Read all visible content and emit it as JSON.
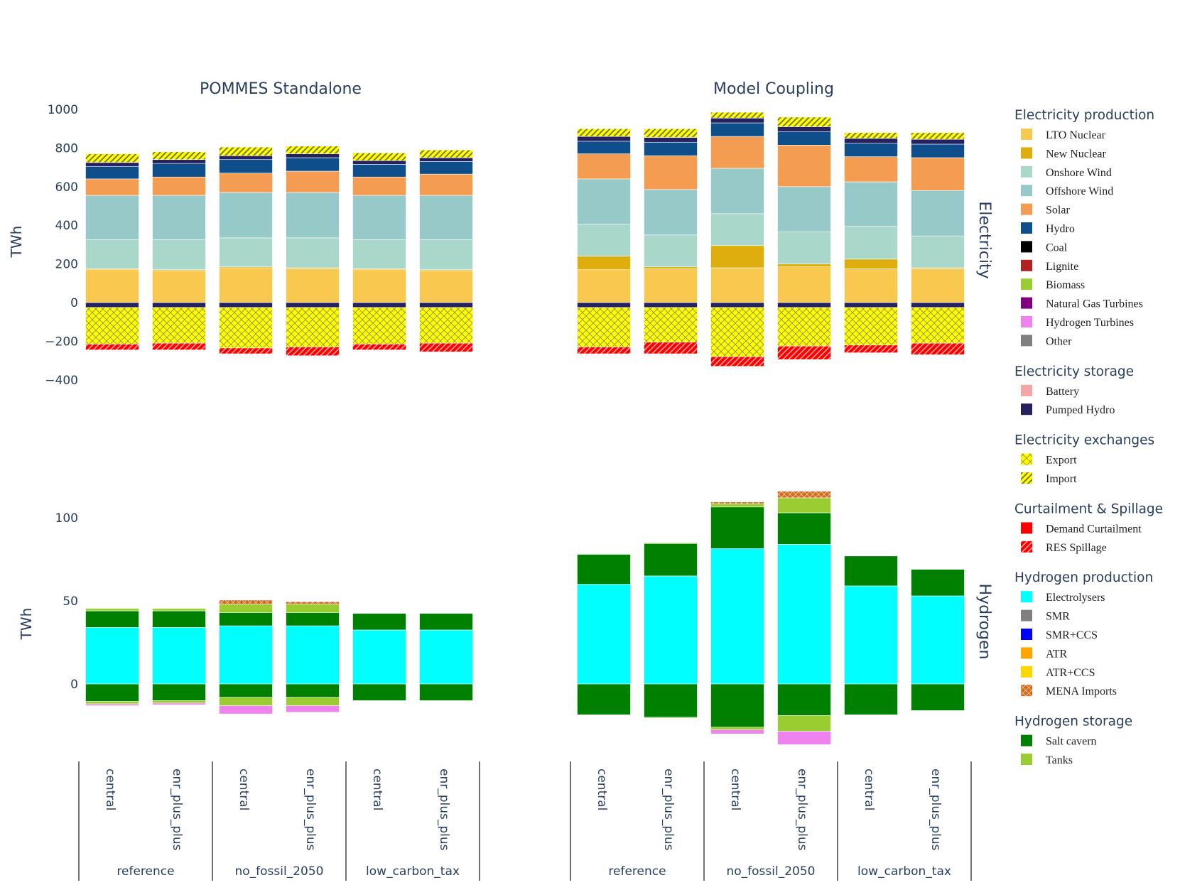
{
  "chart_data": {
    "type": "bar",
    "stacked": true,
    "y_axis_label": "TWh",
    "panel_titles": [
      "POMMES Standalone",
      "Model Coupling"
    ],
    "row_labels": [
      "Electricity",
      "Hydrogen"
    ],
    "categories": [
      "central",
      "enr_plus_plus",
      "central",
      "enr_plus_plus",
      "central",
      "enr_plus_plus"
    ],
    "groups": [
      {
        "label": "reference",
        "span": 2
      },
      {
        "label": "no_fossil_2050",
        "span": 2
      },
      {
        "label": "low_carbon_tax",
        "span": 2
      }
    ],
    "electricity_axis": {
      "ylim": [
        -400,
        1000
      ],
      "ticks": [
        -400,
        -200,
        0,
        200,
        400,
        600,
        800,
        1000
      ],
      "tick_labels": [
        "−400",
        "−200",
        "0",
        "200",
        "400",
        "600",
        "800",
        "1000"
      ]
    },
    "hydrogen_axis": {
      "ylim": [
        -38,
        115
      ],
      "ticks": [
        0,
        50,
        100
      ],
      "tick_labels": [
        "0",
        "50",
        "100"
      ]
    },
    "colors": {
      "LTO Nuclear": "#f8c84f",
      "New Nuclear": "#deae0e",
      "Onshore Wind": "#a9d8ca",
      "Offshore Wind": "#98c9c9",
      "Solar": "#f49c52",
      "Hydro": "#0e4f8b",
      "Coal": "#000000",
      "Lignite": "#b02222",
      "Biomass": "#9acd32",
      "Natural Gas Turbines": "#800080",
      "Hydrogen Turbines": "#ee82ee",
      "Other": "#808080",
      "Battery": "#f4a6a6",
      "Pumped Hydro": "#262261",
      "Export": "#ffff00",
      "Import": "#ffff00",
      "Demand Curtailment": "#ff0000",
      "RES Spillage": "#ff0000",
      "Electrolysers": "#00ffff",
      "SMR": "#808080",
      "SMR+CCS": "#0000ff",
      "ATR": "#ffa500",
      "ATR+CCS": "#ffd700",
      "MENA Imports": "#d2691e",
      "Salt cavern": "#008000",
      "Tanks": "#9acd32"
    },
    "legend": [
      {
        "title": "Electricity production",
        "items": [
          "LTO Nuclear",
          "New Nuclear",
          "Onshore Wind",
          "Offshore Wind",
          "Solar",
          "Hydro",
          "Coal",
          "Lignite",
          "Biomass",
          "Natural Gas Turbines",
          "Hydrogen Turbines",
          "Other"
        ]
      },
      {
        "title": "Electricity storage",
        "items": [
          "Battery",
          "Pumped Hydro"
        ]
      },
      {
        "title": "Electricity exchanges",
        "items": [
          "Export",
          "Import"
        ]
      },
      {
        "title": "Curtailment & Spillage",
        "items": [
          "Demand Curtailment",
          "RES Spillage"
        ]
      },
      {
        "title": "Hydrogen production",
        "items": [
          "Electrolysers",
          "SMR",
          "SMR+CCS",
          "ATR",
          "ATR+CCS",
          "MENA Imports"
        ]
      },
      {
        "title": "Hydrogen storage",
        "items": [
          "Salt cavern",
          "Tanks"
        ]
      }
    ],
    "electricity": {
      "POMMES Standalone": [
        {
          "pos": [
            [
              "LTO Nuclear",
              170
            ],
            [
              "New Nuclear",
              5
            ],
            [
              "Onshore Wind",
              150
            ],
            [
              "Offshore Wind",
              230
            ],
            [
              "Solar",
              85
            ],
            [
              "Hydro",
              65
            ],
            [
              "Pumped Hydro",
              20
            ],
            [
              "Import",
              45
            ]
          ],
          "neg": [
            [
              "Pumped Hydro",
              25
            ],
            [
              "Export",
              190
            ],
            [
              "RES Spillage",
              30
            ]
          ]
        },
        {
          "pos": [
            [
              "LTO Nuclear",
              165
            ],
            [
              "New Nuclear",
              5
            ],
            [
              "Onshore Wind",
              155
            ],
            [
              "Offshore Wind",
              230
            ],
            [
              "Solar",
              95
            ],
            [
              "Hydro",
              70
            ],
            [
              "Pumped Hydro",
              20
            ],
            [
              "Import",
              40
            ]
          ],
          "neg": [
            [
              "Pumped Hydro",
              25
            ],
            [
              "Export",
              185
            ],
            [
              "RES Spillage",
              35
            ]
          ]
        },
        {
          "pos": [
            [
              "LTO Nuclear",
              180
            ],
            [
              "New Nuclear",
              5
            ],
            [
              "Onshore Wind",
              150
            ],
            [
              "Offshore Wind",
              235
            ],
            [
              "Solar",
              100
            ],
            [
              "Hydro",
              70
            ],
            [
              "Pumped Hydro",
              20
            ],
            [
              "Import",
              45
            ]
          ],
          "neg": [
            [
              "Pumped Hydro",
              25
            ],
            [
              "Export",
              210
            ],
            [
              "RES Spillage",
              30
            ]
          ]
        },
        {
          "pos": [
            [
              "LTO Nuclear",
              175
            ],
            [
              "New Nuclear",
              5
            ],
            [
              "Onshore Wind",
              155
            ],
            [
              "Offshore Wind",
              235
            ],
            [
              "Solar",
              110
            ],
            [
              "Hydro",
              70
            ],
            [
              "Pumped Hydro",
              20
            ],
            [
              "Import",
              40
            ]
          ],
          "neg": [
            [
              "Pumped Hydro",
              25
            ],
            [
              "Export",
              205
            ],
            [
              "RES Spillage",
              45
            ]
          ]
        },
        {
          "pos": [
            [
              "LTO Nuclear",
              170
            ],
            [
              "New Nuclear",
              5
            ],
            [
              "Onshore Wind",
              150
            ],
            [
              "Offshore Wind",
              230
            ],
            [
              "Solar",
              95
            ],
            [
              "Hydro",
              65
            ],
            [
              "Pumped Hydro",
              20
            ],
            [
              "Import",
              40
            ]
          ],
          "neg": [
            [
              "Pumped Hydro",
              25
            ],
            [
              "Export",
              190
            ],
            [
              "RES Spillage",
              30
            ]
          ]
        },
        {
          "pos": [
            [
              "LTO Nuclear",
              165
            ],
            [
              "New Nuclear",
              5
            ],
            [
              "Onshore Wind",
              155
            ],
            [
              "Offshore Wind",
              230
            ],
            [
              "Solar",
              110
            ],
            [
              "Hydro",
              65
            ],
            [
              "Pumped Hydro",
              20
            ],
            [
              "Import",
              40
            ]
          ],
          "neg": [
            [
              "Pumped Hydro",
              25
            ],
            [
              "Export",
              185
            ],
            [
              "RES Spillage",
              45
            ]
          ]
        }
      ],
      "Model Coupling": [
        {
          "pos": [
            [
              "LTO Nuclear",
              170
            ],
            [
              "New Nuclear",
              70
            ],
            [
              "Onshore Wind",
              165
            ],
            [
              "Offshore Wind",
              235
            ],
            [
              "Solar",
              130
            ],
            [
              "Hydro",
              65
            ],
            [
              "Pumped Hydro",
              25
            ],
            [
              "Import",
              40
            ]
          ],
          "neg": [
            [
              "Pumped Hydro",
              25
            ],
            [
              "Export",
              205
            ],
            [
              "RES Spillage",
              35
            ]
          ]
        },
        {
          "pos": [
            [
              "LTO Nuclear",
              175
            ],
            [
              "New Nuclear",
              10
            ],
            [
              "Onshore Wind",
              165
            ],
            [
              "Offshore Wind",
              235
            ],
            [
              "Solar",
              175
            ],
            [
              "Hydro",
              70
            ],
            [
              "Pumped Hydro",
              25
            ],
            [
              "Import",
              45
            ]
          ],
          "neg": [
            [
              "Pumped Hydro",
              25
            ],
            [
              "Export",
              180
            ],
            [
              "RES Spillage",
              60
            ]
          ]
        },
        {
          "pos": [
            [
              "LTO Nuclear",
              180
            ],
            [
              "New Nuclear",
              115
            ],
            [
              "Onshore Wind",
              165
            ],
            [
              "Offshore Wind",
              235
            ],
            [
              "Solar",
              165
            ],
            [
              "Hydro",
              70
            ],
            [
              "Pumped Hydro",
              25
            ],
            [
              "Import",
              30
            ]
          ],
          "neg": [
            [
              "Pumped Hydro",
              25
            ],
            [
              "Export",
              255
            ],
            [
              "RES Spillage",
              50
            ]
          ]
        },
        {
          "pos": [
            [
              "LTO Nuclear",
              185
            ],
            [
              "New Nuclear",
              15
            ],
            [
              "Onshore Wind",
              165
            ],
            [
              "Offshore Wind",
              235
            ],
            [
              "Solar",
              215
            ],
            [
              "Hydro",
              70
            ],
            [
              "Pumped Hydro",
              25
            ],
            [
              "Import",
              50
            ]
          ],
          "neg": [
            [
              "Pumped Hydro",
              25
            ],
            [
              "Export",
              200
            ],
            [
              "RES Spillage",
              70
            ]
          ]
        },
        {
          "pos": [
            [
              "LTO Nuclear",
              175
            ],
            [
              "New Nuclear",
              50
            ],
            [
              "Onshore Wind",
              170
            ],
            [
              "Offshore Wind",
              230
            ],
            [
              "Solar",
              130
            ],
            [
              "Hydro",
              70
            ],
            [
              "Pumped Hydro",
              25
            ],
            [
              "Import",
              30
            ]
          ],
          "neg": [
            [
              "Pumped Hydro",
              25
            ],
            [
              "Export",
              195
            ],
            [
              "RES Spillage",
              40
            ]
          ]
        },
        {
          "pos": [
            [
              "LTO Nuclear",
              175
            ],
            [
              "New Nuclear",
              5
            ],
            [
              "Onshore Wind",
              165
            ],
            [
              "Offshore Wind",
              235
            ],
            [
              "Solar",
              170
            ],
            [
              "Hydro",
              70
            ],
            [
              "Pumped Hydro",
              25
            ],
            [
              "Import",
              35
            ]
          ],
          "neg": [
            [
              "Pumped Hydro",
              25
            ],
            [
              "Export",
              185
            ],
            [
              "RES Spillage",
              60
            ]
          ]
        }
      ]
    },
    "hydrogen": {
      "POMMES Standalone": [
        {
          "pos": [
            [
              "Electrolysers",
              34
            ],
            [
              "Salt cavern",
              10
            ],
            [
              "Tanks",
              1.5
            ]
          ],
          "neg": [
            [
              "Salt cavern",
              10.5
            ],
            [
              "Tanks",
              1.5
            ],
            [
              "Hydrogen Turbines",
              1
            ]
          ]
        },
        {
          "pos": [
            [
              "Electrolysers",
              34
            ],
            [
              "Salt cavern",
              10
            ],
            [
              "Tanks",
              1.5
            ]
          ],
          "neg": [
            [
              "Salt cavern",
              10
            ],
            [
              "Tanks",
              1.5
            ],
            [
              "Hydrogen Turbines",
              1
            ]
          ]
        },
        {
          "pos": [
            [
              "Electrolysers",
              35
            ],
            [
              "Salt cavern",
              8
            ],
            [
              "Tanks",
              5
            ],
            [
              "MENA Imports",
              2.5
            ]
          ],
          "neg": [
            [
              "Salt cavern",
              8
            ],
            [
              "Tanks",
              5
            ],
            [
              "Hydrogen Turbines",
              5
            ]
          ]
        },
        {
          "pos": [
            [
              "Electrolysers",
              35
            ],
            [
              "Salt cavern",
              8
            ],
            [
              "Tanks",
              5
            ],
            [
              "MENA Imports",
              1.5
            ]
          ],
          "neg": [
            [
              "Salt cavern",
              8
            ],
            [
              "Tanks",
              5
            ],
            [
              "Hydrogen Turbines",
              4
            ]
          ]
        },
        {
          "pos": [
            [
              "Electrolysers",
              32.5
            ],
            [
              "Salt cavern",
              10
            ]
          ],
          "neg": [
            [
              "Salt cavern",
              10
            ]
          ]
        },
        {
          "pos": [
            [
              "Electrolysers",
              32.5
            ],
            [
              "Salt cavern",
              10
            ]
          ],
          "neg": [
            [
              "Salt cavern",
              10
            ]
          ]
        }
      ],
      "Model Coupling": [
        {
          "pos": [
            [
              "Electrolysers",
              60
            ],
            [
              "Salt cavern",
              18
            ]
          ],
          "neg": [
            [
              "Salt cavern",
              18.5
            ]
          ]
        },
        {
          "pos": [
            [
              "Electrolysers",
              65
            ],
            [
              "Salt cavern",
              19.5
            ],
            [
              "Tanks",
              0.5
            ]
          ],
          "neg": [
            [
              "Salt cavern",
              20
            ],
            [
              "Tanks",
              0.5
            ]
          ]
        },
        {
          "pos": [
            [
              "Electrolysers",
              81.5
            ],
            [
              "Salt cavern",
              25
            ],
            [
              "Tanks",
              2
            ],
            [
              "MENA Imports",
              1
            ]
          ],
          "neg": [
            [
              "Salt cavern",
              26
            ],
            [
              "Tanks",
              1.5
            ],
            [
              "Hydrogen Turbines",
              2.5
            ]
          ]
        },
        {
          "pos": [
            [
              "Electrolysers",
              84
            ],
            [
              "Salt cavern",
              19
            ],
            [
              "Tanks",
              9
            ],
            [
              "MENA Imports",
              4
            ]
          ],
          "neg": [
            [
              "Salt cavern",
              19
            ],
            [
              "Tanks",
              9.5
            ],
            [
              "Hydrogen Turbines",
              8
            ]
          ]
        },
        {
          "pos": [
            [
              "Electrolysers",
              59
            ],
            [
              "Salt cavern",
              18
            ]
          ],
          "neg": [
            [
              "Salt cavern",
              18.5
            ]
          ]
        },
        {
          "pos": [
            [
              "Electrolysers",
              53
            ],
            [
              "Salt cavern",
              16
            ]
          ],
          "neg": [
            [
              "Salt cavern",
              16
            ]
          ]
        }
      ]
    }
  }
}
